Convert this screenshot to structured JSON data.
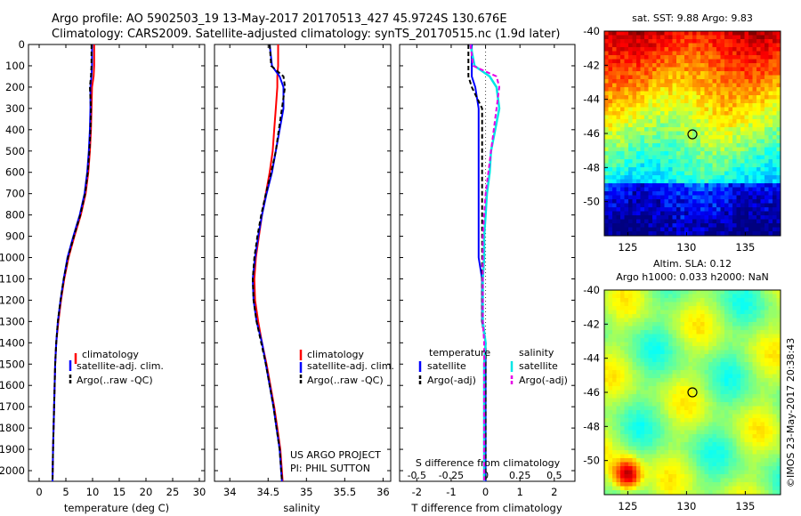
{
  "header": {
    "line1": "Argo profile: AO 5902503_19 13-May-2017 20170513_427 45.9724S 130.676E",
    "line2": "Climatology: CARS2009. Satellite-adjusted climatology: synTS_20170515.nc (1.9d later)"
  },
  "depth_ticks": [
    "0",
    "100",
    "200",
    "300",
    "400",
    "500",
    "600",
    "700",
    "800",
    "900",
    "1000",
    "1100",
    "1200",
    "1300",
    "1400",
    "1500",
    "1600",
    "1700",
    "1800",
    "1900",
    "2000"
  ],
  "panels": {
    "temperature": {
      "xlabel": "temperature (deg C)",
      "xticks": [
        "0",
        "5",
        "10",
        "15",
        "20",
        "25",
        "30"
      ],
      "legend": [
        "climatology",
        "satellite-adj. clim.",
        "Argo(..raw -QC)"
      ]
    },
    "salinity": {
      "xlabel": "salinity",
      "xticks": [
        "34",
        "34.5",
        "35",
        "35.5",
        "36"
      ],
      "legend": [
        "climatology",
        "satellite-adj. clim.",
        "Argo(..raw -QC)"
      ],
      "credit1": "US ARGO PROJECT",
      "credit2": "PI: PHIL SUTTON"
    },
    "difference": {
      "xlabel": "T difference from climatology",
      "xticks": [
        "-2",
        "-1",
        "0",
        "1",
        "2"
      ],
      "top_label": "S difference from climatology",
      "top_ticks": [
        "-0.5",
        "-0.25",
        "0",
        "0.25",
        "0.5"
      ],
      "legend_temp_head": "temperature",
      "legend_sal_head": "salinity",
      "legend_items": [
        "satellite",
        "Argo(-adj)",
        "satellite",
        "Argo(-adj)"
      ]
    }
  },
  "maps": {
    "sst_title": "sat. SST: 9.88 Argo: 9.83",
    "sla_title1": "Altim. SLA: 0.12",
    "sla_title2": "Argo h1000: 0.033 h2000: NaN",
    "yticks": [
      "-40",
      "-42",
      "-44",
      "-46",
      "-48",
      "-50"
    ],
    "xticks": [
      "125",
      "130",
      "135"
    ],
    "side_text": "©IMOS 23-May-2017 20:38:43"
  },
  "colors": {
    "climatology": "#ff0000",
    "satellite": "#0000ff",
    "argo": "#000000",
    "sal_satellite": "#00e6e6",
    "sal_argo": "#e600e6"
  },
  "chart_data": [
    {
      "type": "line",
      "title": "",
      "xlabel": "temperature (deg C)",
      "ylabel": "",
      "xlim": [
        -2,
        31
      ],
      "ylim": [
        2050,
        0
      ],
      "series": [
        {
          "name": "climatology",
          "x": [
            10.3,
            10.3,
            10.2,
            9.9,
            9.8,
            9.7,
            9.5,
            9.2,
            8.7,
            7.8,
            6.6,
            5.5,
            4.7,
            4.1,
            3.6,
            3.2,
            3.0,
            2.9,
            2.8,
            2.7,
            2.6,
            2.5
          ],
          "y": [
            0,
            100,
            150,
            200,
            300,
            400,
            500,
            600,
            700,
            800,
            900,
            1000,
            1100,
            1200,
            1300,
            1400,
            1500,
            1600,
            1700,
            1800,
            1900,
            2050
          ]
        },
        {
          "name": "satellite-adj. clim.",
          "x": [
            9.9,
            9.9,
            9.8,
            9.6,
            9.6,
            9.5,
            9.3,
            9.0,
            8.5,
            7.6,
            6.4,
            5.3,
            4.6,
            4.0,
            3.5,
            3.2,
            3.0,
            2.9,
            2.8,
            2.7,
            2.6,
            2.5
          ],
          "y": [
            0,
            100,
            150,
            200,
            300,
            400,
            500,
            600,
            700,
            800,
            900,
            1000,
            1100,
            1200,
            1300,
            1400,
            1500,
            1600,
            1700,
            1800,
            1900,
            2050
          ]
        },
        {
          "name": "Argo(..raw -QC)",
          "x": [
            9.8,
            9.8,
            9.7,
            9.5,
            9.7,
            9.6,
            9.4,
            9.1,
            8.6,
            7.7,
            6.5,
            5.4,
            4.6,
            4.0,
            3.5,
            3.2,
            3.0,
            2.9,
            2.8,
            2.7,
            2.6,
            2.5
          ],
          "y": [
            0,
            100,
            150,
            200,
            300,
            400,
            500,
            600,
            700,
            800,
            900,
            1000,
            1100,
            1200,
            1300,
            1400,
            1500,
            1600,
            1700,
            1800,
            1900,
            2050
          ]
        }
      ]
    },
    {
      "type": "line",
      "title": "",
      "xlabel": "salinity",
      "ylabel": "",
      "xlim": [
        33.8,
        36.1
      ],
      "ylim": [
        2050,
        0
      ],
      "series": [
        {
          "name": "climatology",
          "x": [
            34.63,
            34.63,
            34.62,
            34.62,
            34.6,
            34.58,
            34.56,
            34.52,
            34.47,
            34.42,
            34.38,
            34.34,
            34.32,
            34.33,
            34.37,
            34.42,
            34.48,
            34.53,
            34.58,
            34.62,
            34.66,
            34.69
          ],
          "y": [
            0,
            100,
            150,
            200,
            300,
            400,
            500,
            600,
            700,
            800,
            900,
            1000,
            1100,
            1200,
            1300,
            1400,
            1500,
            1600,
            1700,
            1800,
            1900,
            2050
          ]
        },
        {
          "name": "satellite-adj. clim.",
          "x": [
            34.52,
            34.55,
            34.65,
            34.7,
            34.7,
            34.65,
            34.6,
            34.55,
            34.48,
            34.42,
            34.37,
            34.33,
            34.3,
            34.31,
            34.35,
            34.42,
            34.47,
            34.52,
            34.57,
            34.61,
            34.65,
            34.68
          ],
          "y": [
            0,
            100,
            150,
            200,
            300,
            400,
            500,
            600,
            700,
            800,
            900,
            1000,
            1100,
            1200,
            1300,
            1400,
            1500,
            1600,
            1700,
            1800,
            1900,
            2050
          ]
        },
        {
          "name": "Argo(..raw -QC)",
          "x": [
            34.52,
            34.54,
            34.7,
            34.72,
            34.68,
            34.64,
            34.6,
            34.54,
            34.47,
            34.41,
            34.36,
            34.32,
            34.3,
            34.31,
            34.35,
            34.41,
            34.47,
            34.52,
            34.57,
            34.61,
            34.65,
            34.68
          ],
          "y": [
            0,
            100,
            150,
            200,
            300,
            400,
            500,
            600,
            700,
            800,
            900,
            1000,
            1100,
            1200,
            1300,
            1400,
            1500,
            1600,
            1700,
            1800,
            1900,
            2050
          ]
        }
      ],
      "annotations": [
        "US ARGO PROJECT",
        "PI: PHIL SUTTON"
      ]
    },
    {
      "type": "line",
      "title": "",
      "xlabel": "T difference from climatology",
      "x2label": "S difference from climatology",
      "ylabel": "",
      "xlim": [
        -2.5,
        2.6
      ],
      "x2lim": [
        -0.625,
        0.65
      ],
      "ylim": [
        2050,
        0
      ],
      "series": [
        {
          "name": "temperature satellite",
          "axis": "T",
          "x": [
            -0.4,
            -0.4,
            -0.4,
            -0.3,
            -0.2,
            -0.2,
            -0.2,
            -0.2,
            -0.2,
            -0.2,
            -0.2,
            -0.2,
            -0.1,
            -0.1,
            -0.1,
            0,
            0,
            0,
            0,
            0,
            0,
            0
          ],
          "y": [
            0,
            100,
            150,
            200,
            300,
            400,
            500,
            600,
            700,
            800,
            900,
            1000,
            1100,
            1200,
            1300,
            1400,
            1500,
            1600,
            1700,
            1800,
            1900,
            2050
          ]
        },
        {
          "name": "temperature Argo(-adj)",
          "axis": "T",
          "x": [
            -0.5,
            -0.5,
            -0.5,
            -0.4,
            -0.1,
            -0.1,
            -0.1,
            -0.1,
            -0.1,
            -0.1,
            -0.1,
            -0.1,
            -0.1,
            -0.1,
            -0.1,
            0,
            0,
            0,
            0,
            0,
            0,
            0
          ],
          "y": [
            0,
            100,
            150,
            200,
            300,
            400,
            500,
            600,
            700,
            800,
            900,
            1000,
            1100,
            1200,
            1300,
            1400,
            1500,
            1600,
            1700,
            1800,
            1900,
            2050
          ]
        },
        {
          "name": "salinity satellite",
          "axis": "S",
          "x": [
            -0.11,
            -0.08,
            0.03,
            0.08,
            0.1,
            0.07,
            0.04,
            0.03,
            0.01,
            0,
            -0.01,
            -0.01,
            -0.02,
            -0.02,
            -0.02,
            0,
            -0.01,
            -0.01,
            -0.01,
            -0.01,
            -0.01,
            -0.01
          ],
          "y": [
            0,
            100,
            150,
            200,
            300,
            400,
            500,
            600,
            700,
            800,
            900,
            1000,
            1100,
            1200,
            1300,
            1400,
            1500,
            1600,
            1700,
            1800,
            1900,
            2050
          ]
        },
        {
          "name": "salinity Argo(-adj)",
          "axis": "S",
          "x": [
            -0.11,
            -0.09,
            0.08,
            0.1,
            0.08,
            0.06,
            0.04,
            0.02,
            0,
            -0.01,
            -0.02,
            -0.02,
            -0.02,
            -0.02,
            -0.02,
            -0.01,
            -0.01,
            -0.01,
            -0.01,
            -0.01,
            -0.01,
            -0.01
          ],
          "y": [
            0,
            100,
            150,
            200,
            300,
            400,
            500,
            600,
            700,
            800,
            900,
            1000,
            1100,
            1200,
            1300,
            1400,
            1500,
            1600,
            1700,
            1800,
            1900,
            2050
          ]
        }
      ]
    }
  ]
}
